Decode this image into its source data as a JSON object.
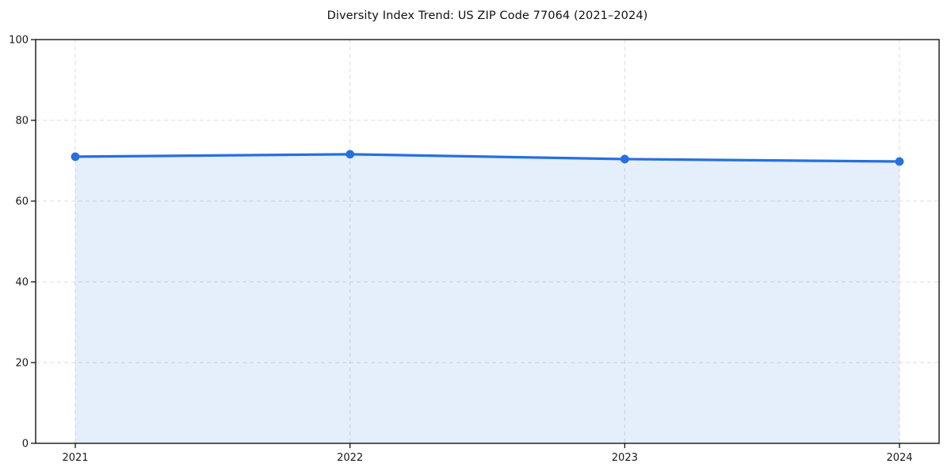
{
  "chart_data": {
    "type": "area",
    "title": "Diversity Index Trend: US ZIP Code 77064 (2021–2024)",
    "x": [
      2021,
      2022,
      2023,
      2024
    ],
    "x_tick_labels": [
      "2021",
      "2022",
      "2023",
      "2024"
    ],
    "series": [
      {
        "name": "Diversity Index",
        "values": [
          71.0,
          71.6,
          70.4,
          69.8
        ]
      }
    ],
    "xlabel": "",
    "ylabel": "",
    "ylim": [
      0,
      100
    ],
    "yticks": [
      0,
      20,
      40,
      60,
      80,
      100
    ],
    "grid": true,
    "grid_style": "dashed",
    "legend": "none",
    "colors": {
      "line": "#2670df",
      "fill": "#2670df",
      "fill_opacity": 0.12,
      "grid": "#dcdcdc",
      "axis": "#000000",
      "text": "#1a1a1a",
      "background": "#ffffff"
    }
  }
}
